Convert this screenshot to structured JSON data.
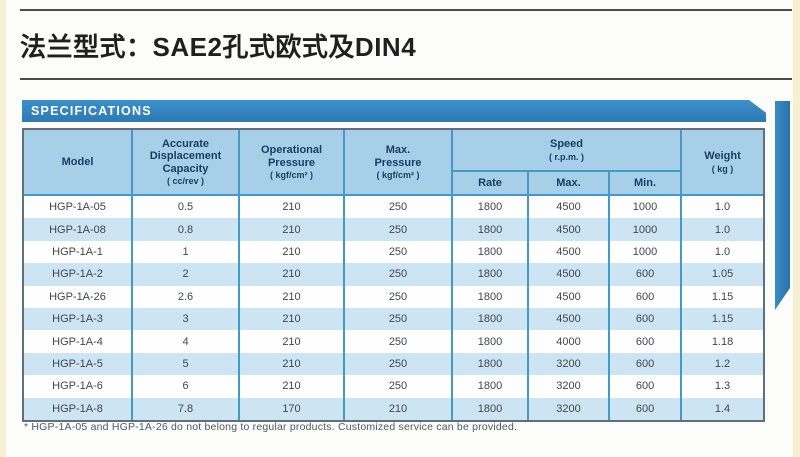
{
  "page": {
    "title": "法兰型式：SAE2孔式欧式及DIN4"
  },
  "section": {
    "label": "SPECIFICATIONS"
  },
  "colors": {
    "accent_bar": "#2f86c3",
    "header_bg": "#a7d0e8",
    "row_alt": "#cde4f2",
    "divider": "#4599c6",
    "header_text": "#1b3c66"
  },
  "table": {
    "head": {
      "model": "Model",
      "capacity_label": "Accurate\nDisplacement\nCapacity",
      "capacity_unit": "( cc/rev )",
      "op_pressure_label": "Operational\nPressure",
      "op_pressure_unit": "( kgf/cm² )",
      "max_pressure_label": "Max.\nPressure",
      "max_pressure_unit": "( kgf/cm² )",
      "speed_label": "Speed",
      "speed_unit": "( r.p.m. )",
      "rate": "Rate",
      "max": "Max.",
      "min": "Min.",
      "weight_label": "Weight",
      "weight_unit": "( kg )"
    },
    "rows": [
      [
        "HGP-1A-05",
        "0.5",
        "210",
        "250",
        "1800",
        "4500",
        "1000",
        "1.0"
      ],
      [
        "HGP-1A-08",
        "0.8",
        "210",
        "250",
        "1800",
        "4500",
        "1000",
        "1.0"
      ],
      [
        "HGP-1A-1",
        "1",
        "210",
        "250",
        "1800",
        "4500",
        "1000",
        "1.0"
      ],
      [
        "HGP-1A-2",
        "2",
        "210",
        "250",
        "1800",
        "4500",
        "600",
        "1.05"
      ],
      [
        "HGP-1A-26",
        "2.6",
        "210",
        "250",
        "1800",
        "4500",
        "600",
        "1.15"
      ],
      [
        "HGP-1A-3",
        "3",
        "210",
        "250",
        "1800",
        "4500",
        "600",
        "1.15"
      ],
      [
        "HGP-1A-4",
        "4",
        "210",
        "250",
        "1800",
        "4000",
        "600",
        "1.18"
      ],
      [
        "HGP-1A-5",
        "5",
        "210",
        "250",
        "1800",
        "3200",
        "600",
        "1.2"
      ],
      [
        "HGP-1A-6",
        "6",
        "210",
        "250",
        "1800",
        "3200",
        "600",
        "1.3"
      ],
      [
        "HGP-1A-8",
        "7.8",
        "170",
        "210",
        "1800",
        "3200",
        "600",
        "1.4"
      ]
    ],
    "footnote": "* HGP-1A-05 and HGP-1A-26 do not belong to regular products. Customized service can be provided."
  }
}
